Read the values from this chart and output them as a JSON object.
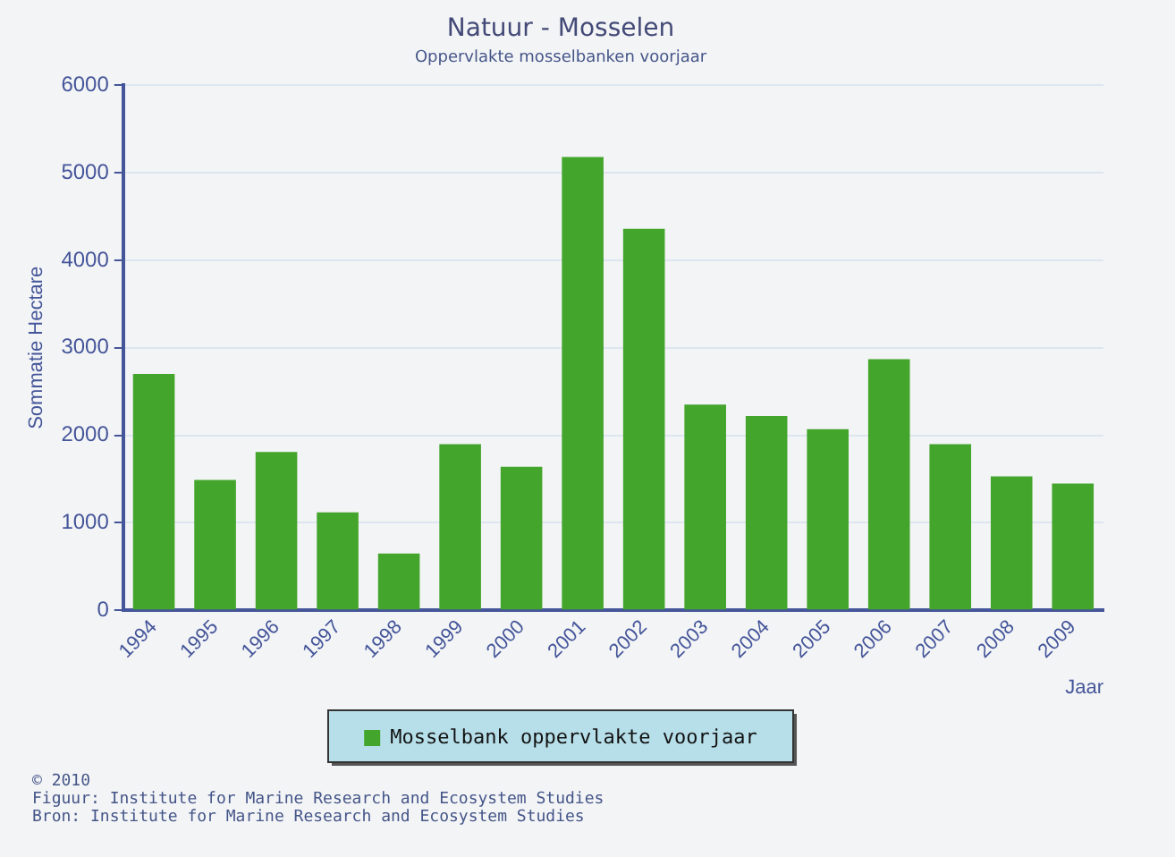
{
  "chart_data": {
    "type": "bar",
    "title": "Natuur - Mosselen",
    "subtitle": "Oppervlakte mosselbanken voorjaar",
    "xlabel": "Jaar",
    "ylabel": "Sommatie Hectare",
    "categories": [
      "1994",
      "1995",
      "1996",
      "1997",
      "1998",
      "1999",
      "2000",
      "2001",
      "2002",
      "2003",
      "2004",
      "2005",
      "2006",
      "2007",
      "2008",
      "2009"
    ],
    "series": [
      {
        "name": "Mosselbank oppervlakte voorjaar",
        "color": "#44a52c",
        "values": [
          2700,
          1490,
          1810,
          1120,
          650,
          1900,
          1640,
          5180,
          4360,
          2350,
          2220,
          2070,
          2870,
          1900,
          1530,
          1450
        ]
      }
    ],
    "ylim": [
      0,
      6000
    ],
    "yticks": [
      0,
      1000,
      2000,
      3000,
      4000,
      5000,
      6000
    ],
    "grid": "y",
    "legend": "bottom",
    "annotations": [
      "© 2010",
      "Figuur: Institute for Marine Research and Ecosystem Studies",
      "Bron: Institute for Marine Research and Ecosystem Studies"
    ]
  }
}
